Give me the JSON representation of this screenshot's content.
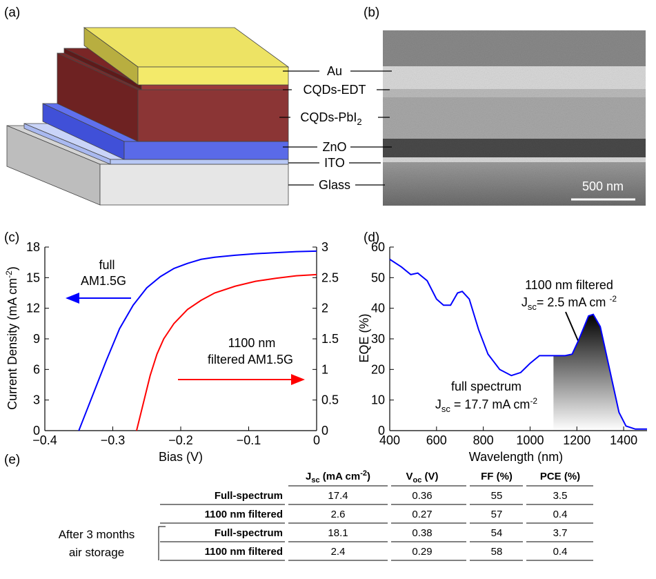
{
  "panel_labels": [
    "(a)",
    "(b)",
    "(c)",
    "(d)",
    "(e)"
  ],
  "schematic": {
    "layers": [
      "Au",
      "CQDs-EDT",
      [
        "CQDs-PbI",
        "2"
      ],
      "ZnO",
      "ITO",
      "Glass"
    ]
  },
  "sem": {
    "scale_bar": "500 nm"
  },
  "chart_data": [
    {
      "type": "line",
      "xlabel": "Bias (V)",
      "ylabel": [
        "Current Density (mA cm",
        "-2",
        ")"
      ],
      "xlim": [
        -0.4,
        0
      ],
      "ylim": [
        0,
        18
      ],
      "y2lim": [
        0,
        3
      ],
      "xticks": [
        {
          "value": -0.4,
          "label": "−0.4"
        },
        {
          "value": -0.3,
          "label": "−0.3"
        },
        {
          "value": -0.2,
          "label": "−0.2"
        },
        {
          "value": -0.1,
          "label": "−0.1"
        },
        0
      ],
      "yticks": [
        0,
        3,
        6,
        9,
        12,
        15,
        18
      ],
      "y2ticks": [
        0,
        0.5,
        1,
        1.5,
        2,
        2.5,
        3
      ],
      "series": [
        {
          "color": "#0000ff",
          "x": [
            -0.35,
            -0.33,
            -0.31,
            -0.29,
            -0.27,
            -0.25,
            -0.23,
            -0.21,
            -0.19,
            -0.17,
            -0.15,
            -0.12,
            -0.09,
            -0.06,
            -0.03,
            0
          ],
          "values": [
            0,
            3.4,
            6.8,
            10,
            12.3,
            14,
            15.1,
            15.9,
            16.4,
            16.8,
            17,
            17.2,
            17.35,
            17.45,
            17.55,
            17.6
          ]
        },
        {
          "color": "#ff0000",
          "axis": "y2",
          "x": [
            -0.265,
            -0.255,
            -0.245,
            -0.235,
            -0.225,
            -0.21,
            -0.19,
            -0.17,
            -0.15,
            -0.12,
            -0.09,
            -0.06,
            -0.03,
            0
          ],
          "values": [
            0,
            0.45,
            0.9,
            1.25,
            1.5,
            1.75,
            1.98,
            2.13,
            2.25,
            2.36,
            2.44,
            2.49,
            2.53,
            2.55
          ]
        }
      ],
      "annotations": [
        "full",
        "AM1.5G",
        "1100 nm",
        "filtered AM1.5G"
      ]
    },
    {
      "type": "line",
      "xlabel": "Wavelength (nm)",
      "ylabel": "EQE (%)",
      "xlim": [
        400,
        1500
      ],
      "ylim": [
        0,
        60
      ],
      "xticks": [
        400,
        600,
        800,
        1000,
        1200,
        1400
      ],
      "yticks": [
        0,
        10,
        20,
        30,
        40,
        50,
        60
      ],
      "x": [
        400,
        450,
        490,
        520,
        560,
        600,
        630,
        660,
        690,
        710,
        740,
        780,
        820,
        870,
        920,
        960,
        1000,
        1040,
        1100,
        1150,
        1180,
        1210,
        1250,
        1270,
        1300,
        1340,
        1380,
        1410,
        1450,
        1500
      ],
      "series": [
        {
          "color": "#0000ff",
          "values": [
            56,
            53.5,
            51,
            51.5,
            49,
            43,
            41,
            41,
            45,
            45.5,
            43,
            33,
            25,
            20,
            18,
            19,
            22,
            24.5,
            24.5,
            24.5,
            25,
            30,
            37.5,
            38,
            34,
            20,
            6,
            1.5,
            0.5,
            0.5
          ]
        }
      ],
      "shade_from": 1100,
      "annotations": [
        "1100 nm filtered",
        [
          "J",
          "sc",
          "= 2.5 mA cm ",
          "-2"
        ],
        "full spectrum",
        [
          "J",
          "sc",
          " = 17.7 mA cm",
          "-2"
        ]
      ]
    }
  ],
  "table": {
    "group_label": [
      "After 3 months",
      "air storage"
    ],
    "header": [
      [
        "J",
        "sc",
        " (mA cm",
        "-2",
        ")"
      ],
      [
        "V",
        "oc",
        " (V)"
      ],
      "FF (%)",
      "PCE (%)"
    ],
    "rows": [
      [
        "Full-spectrum",
        17.4,
        0.36,
        55,
        3.5
      ],
      [
        "1100 nm filtered",
        2.6,
        0.27,
        57,
        0.4
      ],
      [
        "Full-spectrum",
        18.1,
        0.38,
        54,
        3.7
      ],
      [
        "1100 nm filtered",
        2.4,
        0.29,
        58,
        0.4
      ]
    ]
  }
}
